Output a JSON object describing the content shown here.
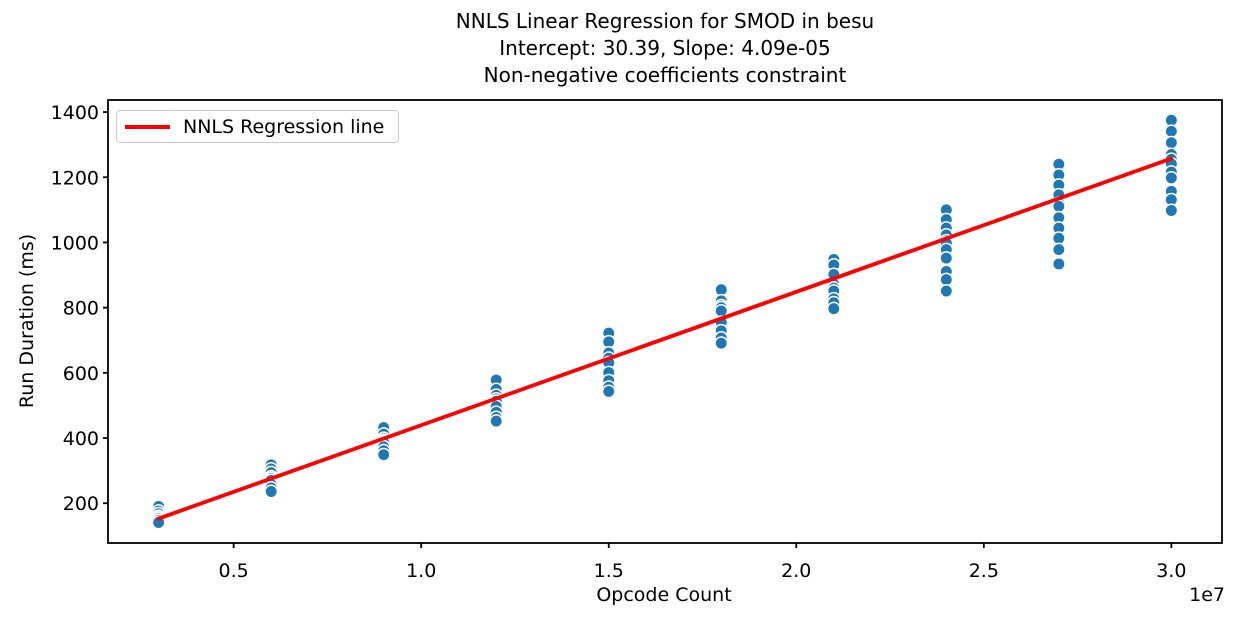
{
  "figure": {
    "title_lines": [
      "NNLS Linear Regression for SMOD in besu",
      "Intercept: 30.39, Slope: 4.09e-05",
      "Non-negative coefficients constraint"
    ]
  },
  "chart_data": {
    "type": "scatter",
    "title": "NNLS Linear Regression for SMOD in besu\nIntercept: 30.39, Slope: 4.09e-05\nNon-negative coefficients constraint",
    "xlabel": "Opcode Count",
    "ylabel": "Run Duration (ms)",
    "x_offset_label": "1e7",
    "xlim": [
      1650000,
      31350000
    ],
    "ylim": [
      78,
      1437
    ],
    "x_ticks": {
      "values": [
        5000000,
        10000000,
        15000000,
        20000000,
        25000000,
        30000000
      ],
      "labels": [
        "0.5",
        "1.0",
        "1.5",
        "2.0",
        "2.5",
        "3.0"
      ]
    },
    "y_ticks": {
      "values": [
        200,
        400,
        600,
        800,
        1000,
        1200,
        1400
      ],
      "labels": [
        "200",
        "400",
        "600",
        "800",
        "1000",
        "1200",
        "1400"
      ]
    },
    "legend": {
      "label": "NNLS Regression line",
      "position": "upper left"
    },
    "grid": false,
    "marker_color": "#1f77b4",
    "marker_edge_color": "#ffffff",
    "regression_line": {
      "intercept": 30.39,
      "slope": 4.09e-05,
      "x_start": 3000000,
      "x_end": 30000000,
      "color": "#ff0000"
    },
    "clusters": [
      {
        "opcode_count": 3000000,
        "run_durations_ms": [
          190,
          176,
          168,
          160,
          157,
          153,
          147,
          141
        ]
      },
      {
        "opcode_count": 6000000,
        "run_durations_ms": [
          318,
          305,
          294,
          281,
          276,
          270,
          258,
          247,
          236
        ]
      },
      {
        "opcode_count": 9000000,
        "run_durations_ms": [
          432,
          412,
          399,
          393,
          390,
          386,
          373,
          361,
          349
        ]
      },
      {
        "opcode_count": 12000000,
        "run_durations_ms": [
          578,
          549,
          531,
          520,
          513,
          497,
          479,
          463,
          452
        ]
      },
      {
        "opcode_count": 15000000,
        "run_durations_ms": [
          722,
          695,
          661,
          645,
          631,
          601,
          576,
          556,
          543
        ]
      },
      {
        "opcode_count": 18000000,
        "run_durations_ms": [
          855,
          821,
          806,
          800,
          790,
          755,
          729,
          707,
          691
        ]
      },
      {
        "opcode_count": 21000000,
        "run_durations_ms": [
          948,
          931,
          902,
          872,
          860,
          851,
          827,
          815,
          797
        ]
      },
      {
        "opcode_count": 24000000,
        "run_durations_ms": [
          1100,
          1070,
          1044,
          1023,
          1005,
          998,
          978,
          952,
          911,
          886,
          851
        ]
      },
      {
        "opcode_count": 27000000,
        "run_durations_ms": [
          1240,
          1207,
          1176,
          1146,
          1120,
          1111,
          1076,
          1044,
          1013,
          978,
          934
        ]
      },
      {
        "opcode_count": 30000000,
        "run_durations_ms": [
          1375,
          1341,
          1306,
          1270,
          1255,
          1241,
          1216,
          1198,
          1157,
          1131,
          1098
        ]
      }
    ]
  }
}
